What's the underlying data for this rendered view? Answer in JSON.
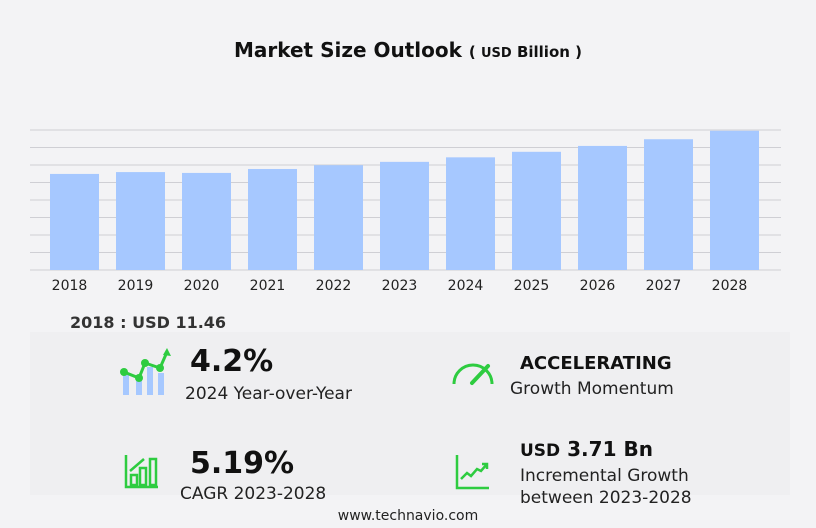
{
  "chart_data": {
    "type": "bar",
    "title": "Market Size Outlook",
    "unit_prefix": "USD",
    "unit": "Billion",
    "categories": [
      "2018",
      "2019",
      "2020",
      "2021",
      "2022",
      "2023",
      "2024",
      "2025",
      "2026",
      "2027",
      "2028"
    ],
    "values": [
      11.46,
      11.68,
      11.58,
      12.05,
      12.5,
      12.9,
      13.44,
      14.1,
      14.8,
      15.6,
      16.61
    ],
    "ylim": [
      0,
      16.7
    ],
    "grid": true,
    "bar_color": "#a6c8ff"
  },
  "base_label": "2018 : USD  11.46",
  "stats": {
    "yoy_value": "4.2%",
    "yoy_label": "2024 Year-over-Year",
    "momentum_value": "ACCELERATING",
    "momentum_label": "Growth Momentum",
    "cagr_value": "5.19%",
    "cagr_label": "CAGR 2023-2028",
    "incr_prefix": "USD",
    "incr_value": "3.71 Bn",
    "incr_label1": "Incremental Growth",
    "incr_label2": "between 2023-2028"
  },
  "icons": {
    "yoy": "growth-chart-icon",
    "momentum": "speedometer-icon",
    "cagr": "bar-growth-icon",
    "incr": "line-trend-icon",
    "accent": "#2ecc40"
  },
  "footer": "www.technavio.com"
}
